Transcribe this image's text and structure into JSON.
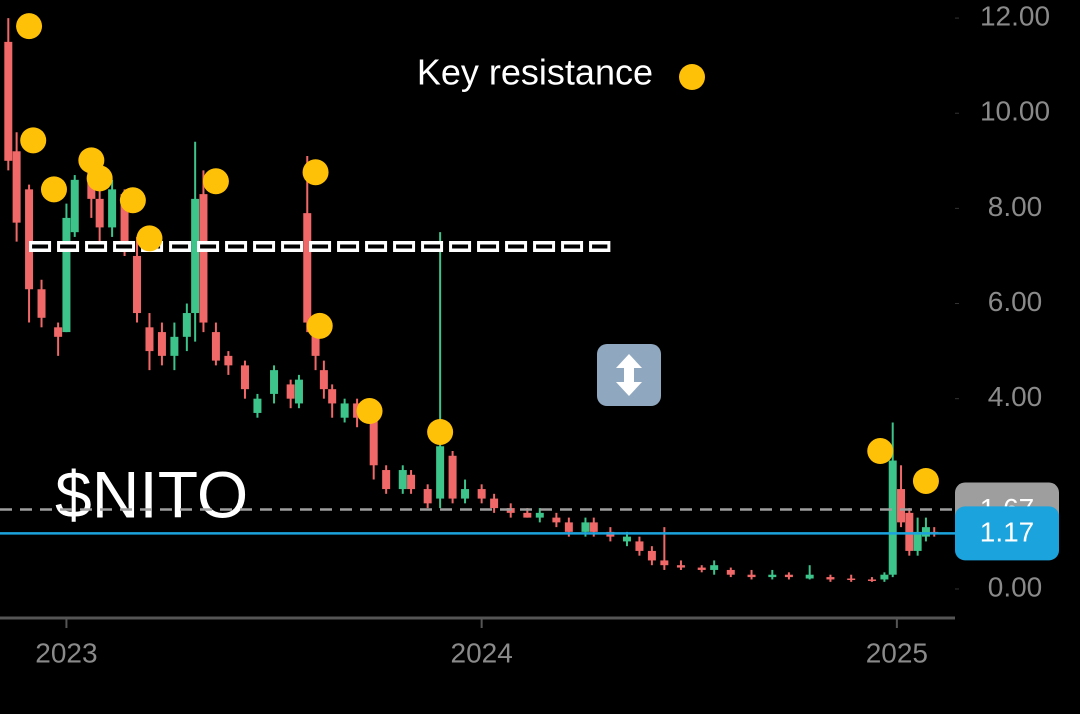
{
  "chart_data": {
    "type": "candlestick",
    "title": "$NITO",
    "x": [
      2022.86,
      2022.88,
      2022.91,
      2022.94,
      2022.98,
      2023.0,
      2023.02,
      2023.06,
      2023.08,
      2023.11,
      2023.14,
      2023.17,
      2023.2,
      2023.23,
      2023.26,
      2023.29,
      2023.31,
      2023.33,
      2023.36,
      2023.39,
      2023.43,
      2023.46,
      2023.5,
      2023.54,
      2023.56,
      2023.58,
      2023.6,
      2023.62,
      2023.64,
      2023.67,
      2023.7,
      2023.74,
      2023.77,
      2023.81,
      2023.83,
      2023.87,
      2023.9,
      2023.93,
      2023.96,
      2024.0,
      2024.03,
      2024.07,
      2024.11,
      2024.14,
      2024.18,
      2024.21,
      2024.25,
      2024.27,
      2024.31,
      2024.35,
      2024.38,
      2024.41,
      2024.44,
      2024.48,
      2024.53,
      2024.56,
      2024.6,
      2024.65,
      2024.7,
      2024.74,
      2024.79,
      2024.84,
      2024.89,
      2024.94,
      2024.97,
      2024.99,
      2025.01,
      2025.03,
      2025.05,
      2025.07,
      2025.09
    ],
    "open": [
      11.5,
      9.2,
      8.4,
      6.3,
      5.5,
      5.4,
      7.5,
      8.8,
      8.2,
      7.6,
      8.3,
      7.0,
      5.5,
      5.4,
      4.9,
      5.3,
      5.8,
      8.3,
      5.4,
      4.9,
      4.7,
      3.7,
      4.1,
      4.3,
      3.9,
      7.9,
      5.4,
      4.6,
      4.2,
      3.6,
      3.9,
      3.6,
      2.5,
      2.1,
      2.4,
      2.1,
      1.9,
      2.8,
      1.9,
      2.1,
      1.9,
      1.7,
      1.6,
      1.5,
      1.5,
      1.4,
      1.2,
      1.4,
      1.2,
      1.0,
      1.0,
      0.8,
      0.6,
      0.5,
      0.45,
      0.4,
      0.4,
      0.3,
      0.25,
      0.3,
      0.22,
      0.25,
      0.22,
      0.2,
      0.2,
      0.3,
      2.1,
      1.6,
      0.8,
      1.1,
      1.2
    ],
    "high": [
      12.0,
      9.6,
      8.5,
      6.5,
      5.6,
      8.1,
      8.7,
      9.0,
      8.6,
      8.6,
      8.4,
      7.4,
      5.8,
      5.6,
      5.6,
      6.0,
      9.4,
      8.8,
      5.6,
      5.0,
      4.8,
      4.1,
      4.7,
      4.4,
      4.5,
      9.1,
      5.6,
      4.8,
      4.3,
      4.0,
      4.0,
      3.8,
      2.6,
      2.6,
      2.5,
      2.2,
      7.5,
      2.9,
      2.3,
      2.2,
      2.0,
      1.8,
      1.7,
      1.7,
      1.6,
      1.5,
      1.5,
      1.5,
      1.3,
      1.2,
      1.1,
      0.9,
      1.3,
      0.6,
      0.5,
      0.6,
      0.45,
      0.4,
      0.4,
      0.35,
      0.5,
      0.3,
      0.3,
      0.25,
      0.35,
      3.5,
      2.6,
      1.7,
      1.5,
      1.5,
      1.3
    ],
    "low": [
      8.8,
      7.3,
      5.6,
      5.5,
      4.9,
      5.4,
      7.4,
      7.8,
      7.2,
      7.4,
      7.0,
      5.6,
      4.6,
      4.7,
      4.6,
      5.0,
      5.2,
      5.4,
      4.7,
      4.5,
      4.0,
      3.6,
      3.9,
      3.8,
      3.8,
      5.4,
      4.6,
      4.0,
      3.6,
      3.5,
      3.4,
      2.3,
      2.0,
      2.0,
      2.0,
      1.7,
      1.7,
      1.8,
      1.8,
      1.8,
      1.6,
      1.5,
      1.5,
      1.4,
      1.3,
      1.1,
      1.1,
      1.1,
      1.0,
      0.9,
      0.7,
      0.5,
      0.4,
      0.4,
      0.35,
      0.3,
      0.25,
      0.2,
      0.2,
      0.2,
      0.2,
      0.15,
      0.15,
      0.15,
      0.15,
      0.25,
      1.3,
      0.7,
      0.7,
      1.0,
      1.1
    ],
    "close": [
      9.0,
      7.7,
      6.3,
      5.7,
      5.3,
      7.8,
      8.6,
      8.2,
      7.6,
      8.4,
      7.2,
      5.8,
      5.0,
      4.9,
      5.3,
      5.8,
      8.2,
      5.6,
      4.8,
      4.7,
      4.2,
      4.0,
      4.6,
      4.0,
      4.4,
      5.6,
      4.9,
      4.2,
      3.9,
      3.9,
      3.6,
      2.6,
      2.1,
      2.5,
      2.1,
      1.8,
      3.0,
      1.9,
      2.1,
      1.9,
      1.7,
      1.6,
      1.5,
      1.6,
      1.4,
      1.2,
      1.4,
      1.2,
      1.1,
      1.1,
      0.8,
      0.6,
      0.5,
      0.45,
      0.4,
      0.5,
      0.3,
      0.25,
      0.3,
      0.25,
      0.3,
      0.2,
      0.2,
      0.18,
      0.3,
      2.7,
      1.4,
      0.8,
      1.2,
      1.3,
      1.17
    ],
    "up_color": "#3cc48a",
    "down_color": "#f06868",
    "resistance": {
      "name": "Key resistance",
      "color": "#ffc107",
      "x": [
        2022.91,
        2022.92,
        2022.97,
        2023.06,
        2023.08,
        2023.16,
        2023.2,
        2023.36,
        2023.6,
        2023.61,
        2023.73,
        2023.9,
        2024.96,
        2025.07
      ],
      "values": [
        11.83,
        9.43,
        8.4,
        9.01,
        8.63,
        8.17,
        7.37,
        8.57,
        8.76,
        5.53,
        3.74,
        3.3,
        2.9,
        2.27
      ]
    },
    "level_line": {
      "value": 7.2,
      "x": [
        2022.91,
        2024.31
      ]
    },
    "price_lines": [
      {
        "value": 1.67,
        "color": "#9e9e9e",
        "style": "dashed"
      },
      {
        "value": 1.17,
        "color": "#1ba3dd",
        "style": "solid"
      }
    ],
    "xlim": [
      2022.84,
      2025.14
    ],
    "xticks": [
      2023,
      2024,
      2025
    ],
    "ylim": [
      -0.61,
      12.38
    ],
    "yticks": [
      {
        "value": 0,
        "label": "0.00"
      },
      {
        "value": 4,
        "label": "4.00"
      },
      {
        "value": 6,
        "label": "6.00"
      },
      {
        "value": 8,
        "label": "8.00"
      },
      {
        "value": 10,
        "label": "10.00"
      },
      {
        "value": 12,
        "label": "12.00"
      }
    ]
  }
}
